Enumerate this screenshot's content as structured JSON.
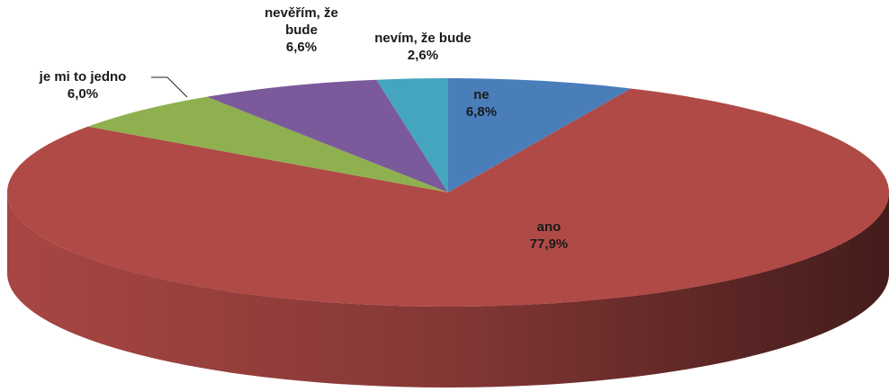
{
  "chart_data": {
    "type": "pie3d",
    "categories": [
      "ne",
      "ano",
      "je mi to jedno",
      "nevěřím, že bude",
      "nevím, že bude"
    ],
    "values": [
      6.8,
      77.9,
      6.0,
      6.6,
      2.6
    ],
    "value_labels": [
      "6,8%",
      "77,9%",
      "6,0%",
      "6,6%",
      "2,6%"
    ],
    "colors": [
      "#4a7ebb",
      "#b04a47",
      "#8fb04f",
      "#7a5a9a",
      "#45a5bf"
    ]
  }
}
